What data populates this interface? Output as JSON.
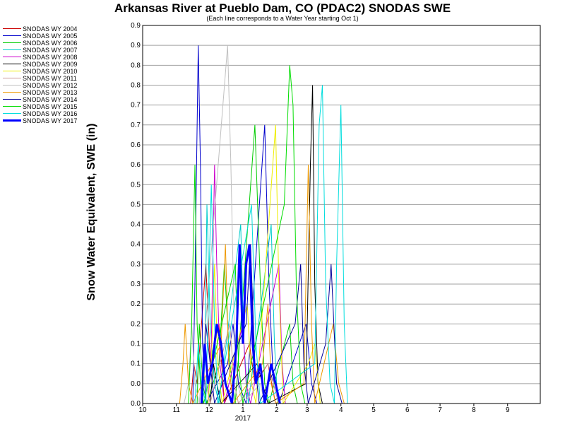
{
  "chart_data": {
    "type": "line",
    "title": "Arkansas River at Pueblo Dam, CO (PDAC2) SNODAS SWE",
    "subtitle": "(Each line corresponds to a Water Year starting Oct 1)",
    "ylabel": "Snow Water Equivalent, SWE (in)",
    "xlabel": "",
    "x_ticks": [
      "10",
      "11",
      "12",
      "1",
      "2",
      "3",
      "4",
      "5",
      "6",
      "7",
      "8",
      "9"
    ],
    "x_year_label": "2017",
    "y_ticks": [
      "0.0",
      "0.0",
      "0.1",
      "0.1",
      "0.2",
      "0.2",
      "0.3",
      "0.3",
      "0.4",
      "0.4",
      "0.5",
      "0.5",
      "0.6",
      "0.6",
      "0.7",
      "0.7",
      "0.8",
      "0.8",
      "0.9",
      "0.9"
    ],
    "ylim": [
      0,
      0.95
    ],
    "grid": true,
    "legend_position": "left",
    "series": [
      {
        "name": "SNODAS WY 2004",
        "color": "#cc0000",
        "width": 1,
        "points": [
          [
            44,
            0
          ],
          [
            47,
            0.1
          ],
          [
            50,
            0.05
          ],
          [
            58,
            0.35
          ],
          [
            62,
            0.1
          ],
          [
            70,
            0.2
          ],
          [
            75,
            0
          ],
          [
            98,
            0.15
          ],
          [
            103,
            0.05
          ],
          [
            115,
            0.1
          ],
          [
            122,
            0
          ]
        ]
      },
      {
        "name": "SNODAS WY 2005",
        "color": "#0000cc",
        "width": 1,
        "points": [
          [
            46,
            0
          ],
          [
            48,
            0.3
          ],
          [
            51,
            0.9
          ],
          [
            53,
            0.6
          ],
          [
            55,
            0.15
          ],
          [
            58,
            0
          ],
          [
            78,
            0.1
          ],
          [
            83,
            0.2
          ],
          [
            88,
            0.05
          ],
          [
            95,
            0
          ],
          [
            112,
            0.7
          ],
          [
            116,
            0.3
          ],
          [
            120,
            0.05
          ],
          [
            125,
            0
          ],
          [
            150,
            0.2
          ],
          [
            155,
            0.05
          ],
          [
            160,
            0
          ]
        ]
      },
      {
        "name": "SNODAS WY 2006",
        "color": "#00cc00",
        "width": 1,
        "points": [
          [
            50,
            0
          ],
          [
            52,
            0.2
          ],
          [
            55,
            0.05
          ],
          [
            59,
            0
          ],
          [
            70,
            0.1
          ],
          [
            75,
            0.35
          ],
          [
            80,
            0.1
          ],
          [
            85,
            0
          ],
          [
            103,
            0.7
          ],
          [
            108,
            0.3
          ],
          [
            112,
            0.05
          ],
          [
            116,
            0
          ],
          [
            135,
            0.2
          ],
          [
            138,
            0.05
          ],
          [
            142,
            0
          ]
        ]
      },
      {
        "name": "SNODAS WY 2007",
        "color": "#00cccc",
        "width": 1,
        "points": [
          [
            55,
            0
          ],
          [
            57,
            0.1
          ],
          [
            59,
            0.5
          ],
          [
            62,
            0.2
          ],
          [
            66,
            0.05
          ],
          [
            70,
            0
          ],
          [
            90,
            0.45
          ],
          [
            93,
            0.15
          ],
          [
            97,
            0
          ],
          [
            118,
            0.45
          ],
          [
            121,
            0.15
          ],
          [
            124,
            0
          ]
        ]
      },
      {
        "name": "SNODAS WY 2008",
        "color": "#cc00cc",
        "width": 1,
        "points": [
          [
            60,
            0
          ],
          [
            63,
            0.15
          ],
          [
            66,
            0.6
          ],
          [
            68,
            0.35
          ],
          [
            71,
            0.1
          ],
          [
            75,
            0
          ],
          [
            92,
            0.2
          ],
          [
            95,
            0.05
          ],
          [
            99,
            0
          ],
          [
            125,
            0.35
          ],
          [
            128,
            0.1
          ],
          [
            131,
            0
          ]
        ]
      },
      {
        "name": "SNODAS WY 2009",
        "color": "#000000",
        "width": 1,
        "points": [
          [
            62,
            0
          ],
          [
            65,
            0.1
          ],
          [
            68,
            0.05
          ],
          [
            72,
            0
          ],
          [
            105,
            0.1
          ],
          [
            110,
            0.05
          ],
          [
            115,
            0
          ],
          [
            150,
            0.05
          ],
          [
            154,
            0.6
          ],
          [
            156,
            0.8
          ],
          [
            158,
            0.3
          ],
          [
            161,
            0.05
          ],
          [
            165,
            0
          ]
        ]
      },
      {
        "name": "SNODAS WY 2010",
        "color": "#eeee00",
        "width": 1,
        "points": [
          [
            60,
            0
          ],
          [
            63,
            0.1
          ],
          [
            66,
            0.35
          ],
          [
            69,
            0.1
          ],
          [
            73,
            0
          ],
          [
            96,
            0.25
          ],
          [
            100,
            0.05
          ],
          [
            104,
            0
          ],
          [
            122,
            0.7
          ],
          [
            125,
            0.3
          ],
          [
            129,
            0
          ],
          [
            152,
            0.1
          ],
          [
            158,
            0.15
          ],
          [
            163,
            0
          ]
        ]
      },
      {
        "name": "SNODAS WY 2011",
        "color": "#cc9999",
        "width": 1,
        "points": [
          [
            52,
            0
          ],
          [
            55,
            0.1
          ],
          [
            58,
            0.05
          ],
          [
            62,
            0
          ],
          [
            80,
            0.2
          ],
          [
            84,
            0.05
          ],
          [
            88,
            0
          ],
          [
            115,
            0.1
          ],
          [
            120,
            0.05
          ],
          [
            125,
            0
          ]
        ]
      },
      {
        "name": "SNODAS WY 2012",
        "color": "#c0c0c0",
        "width": 1,
        "points": [
          [
            38,
            0
          ],
          [
            42,
            0.05
          ],
          [
            45,
            0.2
          ],
          [
            48,
            0.05
          ],
          [
            52,
            0
          ],
          [
            78,
            0.9
          ],
          [
            81,
            0.6
          ],
          [
            84,
            0.2
          ],
          [
            87,
            0.05
          ],
          [
            92,
            0
          ],
          [
            108,
            0.05
          ],
          [
            112,
            0
          ]
        ]
      },
      {
        "name": "SNODAS WY 2013",
        "color": "#ee9900",
        "width": 1,
        "points": [
          [
            34,
            0
          ],
          [
            37,
            0.1
          ],
          [
            39,
            0.2
          ],
          [
            42,
            0.05
          ],
          [
            46,
            0
          ],
          [
            72,
            0.15
          ],
          [
            76,
            0.4
          ],
          [
            79,
            0.1
          ],
          [
            83,
            0
          ],
          [
            110,
            0.1
          ],
          [
            115,
            0.25
          ],
          [
            118,
            0.05
          ],
          [
            122,
            0
          ],
          [
            148,
            0.05
          ],
          [
            152,
            0.6
          ],
          [
            155,
            0.2
          ],
          [
            158,
            0
          ],
          [
            175,
            0.2
          ],
          [
            180,
            0.05
          ],
          [
            185,
            0
          ]
        ]
      },
      {
        "name": "SNODAS WY 2014",
        "color": "#000099",
        "width": 1,
        "points": [
          [
            55,
            0
          ],
          [
            58,
            0.2
          ],
          [
            62,
            0.1
          ],
          [
            66,
            0
          ],
          [
            95,
            0.2
          ],
          [
            99,
            0.4
          ],
          [
            103,
            0.1
          ],
          [
            107,
            0
          ],
          [
            140,
            0.2
          ],
          [
            145,
            0.35
          ],
          [
            148,
            0.1
          ],
          [
            152,
            0
          ],
          [
            168,
            0.15
          ],
          [
            173,
            0.35
          ],
          [
            178,
            0.05
          ],
          [
            183,
            0
          ]
        ]
      },
      {
        "name": "SNODAS WY 2015",
        "color": "#00dd00",
        "width": 1,
        "points": [
          [
            42,
            0
          ],
          [
            45,
            0.2
          ],
          [
            48,
            0.6
          ],
          [
            50,
            0.2
          ],
          [
            53,
            0.05
          ],
          [
            56,
            0
          ],
          [
            85,
            0.35
          ],
          [
            88,
            0.1
          ],
          [
            92,
            0
          ],
          [
            130,
            0.5
          ],
          [
            135,
            0.85
          ],
          [
            138,
            0.75
          ],
          [
            141,
            0.3
          ],
          [
            145,
            0.05
          ],
          [
            149,
            0
          ]
        ]
      },
      {
        "name": "SNODAS WY 2016",
        "color": "#00dddd",
        "width": 1,
        "points": [
          [
            48,
            0
          ],
          [
            51,
            0.15
          ],
          [
            54,
            0.05
          ],
          [
            58,
            0
          ],
          [
            63,
            0.55
          ],
          [
            66,
            0.2
          ],
          [
            69,
            0
          ],
          [
            100,
            0.5
          ],
          [
            104,
            0.15
          ],
          [
            108,
            0
          ],
          [
            158,
            0.1
          ],
          [
            162,
            0.7
          ],
          [
            165,
            0.8
          ],
          [
            168,
            0.3
          ],
          [
            172,
            0.05
          ],
          [
            176,
            0
          ],
          [
            178,
            0.35
          ],
          [
            182,
            0.75
          ],
          [
            185,
            0.2
          ],
          [
            188,
            0
          ]
        ]
      },
      {
        "name": "SNODAS WY 2017",
        "color": "#0000ff",
        "width": 3,
        "points": [
          [
            54,
            0
          ],
          [
            57,
            0.15
          ],
          [
            60,
            0.05
          ],
          [
            64,
            0.1
          ],
          [
            68,
            0.2
          ],
          [
            72,
            0.15
          ],
          [
            76,
            0.05
          ],
          [
            82,
            0
          ],
          [
            86,
            0.15
          ],
          [
            89,
            0.4
          ],
          [
            92,
            0.15
          ],
          [
            95,
            0.35
          ],
          [
            98,
            0.4
          ],
          [
            101,
            0.15
          ],
          [
            104,
            0.05
          ],
          [
            108,
            0.1
          ],
          [
            112,
            0
          ],
          [
            118,
            0.1
          ],
          [
            122,
            0.05
          ],
          [
            126,
            0
          ]
        ]
      }
    ]
  }
}
